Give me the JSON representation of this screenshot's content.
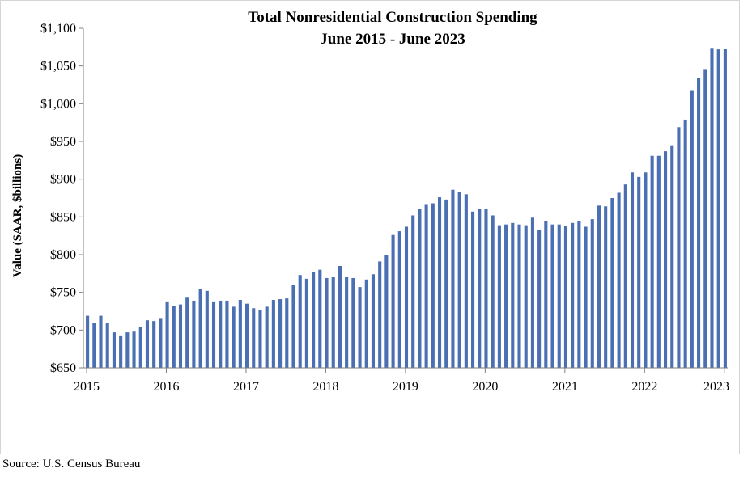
{
  "chart_data": {
    "type": "bar",
    "title": "Total Nonresidential Construction Spending",
    "subtitle": "June 2015 - June 2023",
    "ylabel": "Value (SAAR, $billions)",
    "xlabel": "",
    "ylim": [
      650,
      1100
    ],
    "yticks": [
      "$650",
      "$700",
      "$750",
      "$800",
      "$850",
      "$900",
      "$950",
      "$1,000",
      "$1,050",
      "$1,100"
    ],
    "yticks_values": [
      650,
      700,
      750,
      800,
      850,
      900,
      950,
      1000,
      1050,
      1100
    ],
    "xticks": [
      "2015",
      "2016",
      "2017",
      "2018",
      "2019",
      "2020",
      "2021",
      "2022",
      "2023"
    ],
    "bar_color": "#4a6fb3",
    "grid": false,
    "values": [
      719,
      709,
      719,
      710,
      697,
      693,
      697,
      698,
      704,
      713,
      712,
      716,
      738,
      732,
      734,
      744,
      739,
      754,
      752,
      738,
      739,
      739,
      731,
      740,
      735,
      729,
      727,
      731,
      740,
      741,
      742,
      760,
      773,
      768,
      777,
      780,
      769,
      770,
      785,
      770,
      769,
      757,
      767,
      774,
      791,
      800,
      826,
      831,
      837,
      852,
      860,
      867,
      868,
      876,
      873,
      886,
      883,
      880,
      857,
      860,
      860,
      852,
      839,
      840,
      842,
      840,
      839,
      849,
      833,
      845,
      840,
      840,
      838,
      842,
      845,
      837,
      847,
      865,
      864,
      875,
      882,
      893,
      909,
      903,
      909,
      931,
      931,
      937,
      945,
      969,
      979,
      1018,
      1034,
      1046,
      1074,
      1072,
      1073
    ]
  },
  "source": "Source:  U.S. Census Bureau"
}
